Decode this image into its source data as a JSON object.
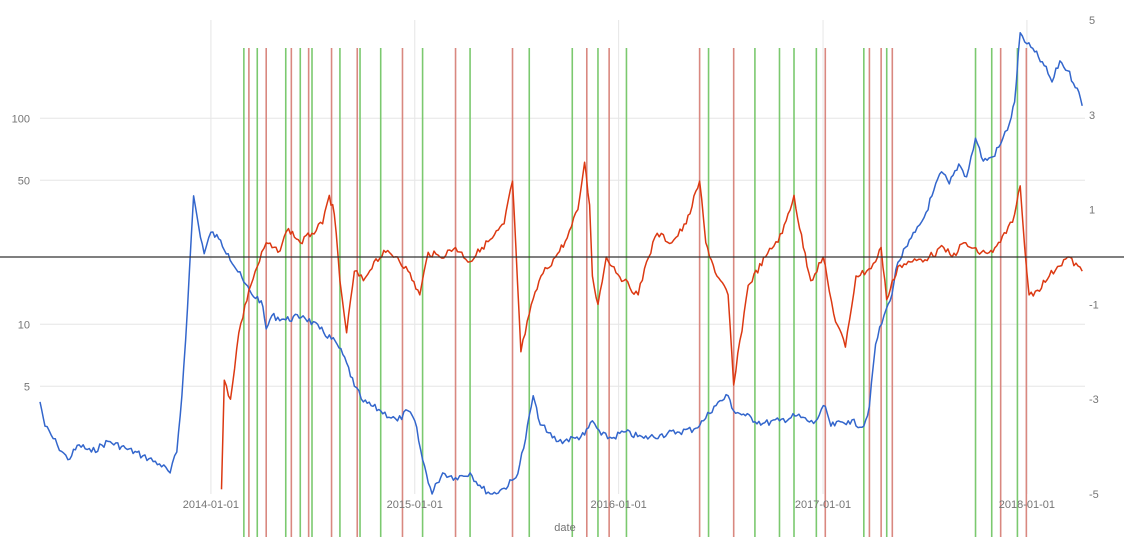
{
  "chart_data": {
    "type": "line",
    "title": "",
    "xlabel": "date",
    "ylabel": "",
    "x_ticks": [
      "2014-01-01",
      "2015-01-01",
      "2016-01-01",
      "2017-01-01",
      "2018-01-01"
    ],
    "x_range": [
      "2013-03-01",
      "2018-04-15"
    ],
    "y_left": {
      "scale": "log",
      "ticks": [
        5,
        10,
        50,
        100
      ],
      "range": [
        1.5,
        300
      ]
    },
    "y_right": {
      "scale": "linear",
      "ticks": [
        5,
        3,
        1,
        -1,
        -3,
        -5
      ],
      "range": [
        -5,
        5
      ]
    },
    "zero_line_right": 0,
    "grid": true,
    "legend": "none",
    "colors": {
      "series_left": "#3366cc",
      "series_right": "#dc3912",
      "buy_signal": "#7bc96f",
      "sell_signal": "#d98880",
      "zero_line": "#333333",
      "grid": "#e6e6e6"
    },
    "series": [
      {
        "axis": "left",
        "points": [
          [
            "2013-03-01",
            4.2
          ],
          [
            "2013-03-10",
            3.2
          ],
          [
            "2013-04-01",
            2.6
          ],
          [
            "2013-04-20",
            2.2
          ],
          [
            "2013-05-10",
            2.6
          ],
          [
            "2013-06-01",
            2.4
          ],
          [
            "2013-07-01",
            2.7
          ],
          [
            "2013-08-01",
            2.5
          ],
          [
            "2013-09-01",
            2.3
          ],
          [
            "2013-10-01",
            2.1
          ],
          [
            "2013-10-20",
            1.9
          ],
          [
            "2013-11-01",
            2.4
          ],
          [
            "2013-11-10",
            4.5
          ],
          [
            "2013-11-20",
            12
          ],
          [
            "2013-12-01",
            42
          ],
          [
            "2013-12-10",
            30
          ],
          [
            "2013-12-20",
            22
          ],
          [
            "2014-01-01",
            28
          ],
          [
            "2014-01-15",
            26
          ],
          [
            "2014-02-01",
            22
          ],
          [
            "2014-03-01",
            16
          ],
          [
            "2014-03-15",
            14
          ],
          [
            "2014-04-01",
            13
          ],
          [
            "2014-04-10",
            9.5
          ],
          [
            "2014-04-20",
            11
          ],
          [
            "2014-05-15",
            10.5
          ],
          [
            "2014-06-15",
            11
          ],
          [
            "2014-07-15",
            9.5
          ],
          [
            "2014-08-15",
            8
          ],
          [
            "2014-09-01",
            6.5
          ],
          [
            "2014-09-15",
            5
          ],
          [
            "2014-10-01",
            4.2
          ],
          [
            "2014-11-01",
            3.8
          ],
          [
            "2014-12-01",
            3.4
          ],
          [
            "2014-12-20",
            3.8
          ],
          [
            "2015-01-01",
            3.4
          ],
          [
            "2015-01-15",
            2.2
          ],
          [
            "2015-02-01",
            1.5
          ],
          [
            "2015-02-10",
            1.7
          ],
          [
            "2015-02-20",
            1.9
          ],
          [
            "2015-03-15",
            1.8
          ],
          [
            "2015-04-10",
            1.9
          ],
          [
            "2015-05-01",
            1.6
          ],
          [
            "2015-05-20",
            1.5
          ],
          [
            "2015-06-10",
            1.6
          ],
          [
            "2015-07-01",
            1.8
          ],
          [
            "2015-07-15",
            2.5
          ],
          [
            "2015-08-01",
            4.5
          ],
          [
            "2015-08-10",
            3.5
          ],
          [
            "2015-08-25",
            3.0
          ],
          [
            "2015-09-15",
            2.7
          ],
          [
            "2015-10-15",
            2.8
          ],
          [
            "2015-11-01",
            2.9
          ],
          [
            "2015-11-15",
            3.4
          ],
          [
            "2015-12-01",
            2.9
          ],
          [
            "2015-12-20",
            2.8
          ],
          [
            "2016-01-10",
            3.0
          ],
          [
            "2016-02-15",
            2.8
          ],
          [
            "2016-03-15",
            2.9
          ],
          [
            "2016-04-15",
            3.0
          ],
          [
            "2016-05-15",
            3.1
          ],
          [
            "2016-06-01",
            3.4
          ],
          [
            "2016-06-20",
            4.0
          ],
          [
            "2016-07-15",
            4.5
          ],
          [
            "2016-07-25",
            3.8
          ],
          [
            "2016-08-15",
            3.6
          ],
          [
            "2016-09-15",
            3.3
          ],
          [
            "2016-10-15",
            3.4
          ],
          [
            "2016-11-15",
            3.6
          ],
          [
            "2016-12-15",
            3.3
          ],
          [
            "2017-01-05",
            4.0
          ],
          [
            "2017-01-15",
            3.2
          ],
          [
            "2017-02-15",
            3.4
          ],
          [
            "2017-03-15",
            3.2
          ],
          [
            "2017-03-25",
            4.0
          ],
          [
            "2017-04-05",
            8
          ],
          [
            "2017-04-20",
            11
          ],
          [
            "2017-05-01",
            13
          ],
          [
            "2017-05-15",
            20
          ],
          [
            "2017-06-01",
            24
          ],
          [
            "2017-06-15",
            28
          ],
          [
            "2017-07-01",
            33
          ],
          [
            "2017-07-15",
            42
          ],
          [
            "2017-08-01",
            55
          ],
          [
            "2017-08-15",
            48
          ],
          [
            "2017-09-01",
            60
          ],
          [
            "2017-09-15",
            52
          ],
          [
            "2017-10-01",
            80
          ],
          [
            "2017-10-15",
            62
          ],
          [
            "2017-11-01",
            65
          ],
          [
            "2017-11-15",
            75
          ],
          [
            "2017-12-01",
            95
          ],
          [
            "2017-12-10",
            120
          ],
          [
            "2017-12-20",
            260
          ],
          [
            "2018-01-01",
            230
          ],
          [
            "2018-01-15",
            210
          ],
          [
            "2018-02-01",
            180
          ],
          [
            "2018-02-15",
            150
          ],
          [
            "2018-03-01",
            190
          ],
          [
            "2018-03-15",
            170
          ],
          [
            "2018-04-01",
            140
          ],
          [
            "2018-04-10",
            115
          ]
        ]
      },
      {
        "axis": "right",
        "points": [
          [
            "2014-01-20",
            -4.9
          ],
          [
            "2014-01-25",
            -2.6
          ],
          [
            "2014-02-05",
            -3.0
          ],
          [
            "2014-02-20",
            -1.6
          ],
          [
            "2014-03-10",
            -0.7
          ],
          [
            "2014-03-25",
            -0.2
          ],
          [
            "2014-04-10",
            0.3
          ],
          [
            "2014-05-01",
            0.1
          ],
          [
            "2014-05-20",
            0.6
          ],
          [
            "2014-06-10",
            0.3
          ],
          [
            "2014-07-01",
            0.5
          ],
          [
            "2014-07-20",
            0.7
          ],
          [
            "2014-08-01",
            1.3
          ],
          [
            "2014-08-10",
            0.9
          ],
          [
            "2014-08-20",
            -0.5
          ],
          [
            "2014-09-01",
            -1.6
          ],
          [
            "2014-09-15",
            -0.3
          ],
          [
            "2014-10-01",
            -0.5
          ],
          [
            "2014-10-20",
            -0.1
          ],
          [
            "2014-11-10",
            0.1
          ],
          [
            "2014-12-01",
            0.0
          ],
          [
            "2014-12-20",
            -0.3
          ],
          [
            "2015-01-10",
            -0.8
          ],
          [
            "2015-01-25",
            0.1
          ],
          [
            "2015-02-15",
            0.0
          ],
          [
            "2015-03-15",
            0.2
          ],
          [
            "2015-04-10",
            -0.1
          ],
          [
            "2015-05-01",
            0.2
          ],
          [
            "2015-05-20",
            0.4
          ],
          [
            "2015-06-10",
            0.7
          ],
          [
            "2015-06-25",
            1.6
          ],
          [
            "2015-07-01",
            0.2
          ],
          [
            "2015-07-10",
            -2.0
          ],
          [
            "2015-07-25",
            -1.2
          ],
          [
            "2015-08-15",
            -0.4
          ],
          [
            "2015-09-10",
            0.0
          ],
          [
            "2015-10-01",
            0.4
          ],
          [
            "2015-10-20",
            1.0
          ],
          [
            "2015-11-01",
            2.0
          ],
          [
            "2015-11-10",
            1.1
          ],
          [
            "2015-11-15",
            -0.4
          ],
          [
            "2015-11-25",
            -1.0
          ],
          [
            "2015-12-10",
            0.0
          ],
          [
            "2016-01-10",
            -0.5
          ],
          [
            "2016-02-05",
            -0.8
          ],
          [
            "2016-02-20",
            -0.1
          ],
          [
            "2016-03-10",
            0.5
          ],
          [
            "2016-04-05",
            0.3
          ],
          [
            "2016-05-01",
            0.7
          ],
          [
            "2016-05-25",
            1.6
          ],
          [
            "2016-06-05",
            0.3
          ],
          [
            "2016-06-25",
            -0.4
          ],
          [
            "2016-07-15",
            -0.8
          ],
          [
            "2016-07-25",
            -2.7
          ],
          [
            "2016-08-20",
            -0.6
          ],
          [
            "2016-09-20",
            0.0
          ],
          [
            "2016-10-20",
            0.5
          ],
          [
            "2016-11-10",
            1.3
          ],
          [
            "2016-11-20",
            0.6
          ],
          [
            "2016-12-10",
            -0.5
          ],
          [
            "2017-01-01",
            0.0
          ],
          [
            "2017-01-20",
            -1.2
          ],
          [
            "2017-02-10",
            -1.9
          ],
          [
            "2017-03-01",
            -0.4
          ],
          [
            "2017-03-20",
            -0.3
          ],
          [
            "2017-04-05",
            -0.1
          ],
          [
            "2017-04-15",
            0.2
          ],
          [
            "2017-04-25",
            -0.9
          ],
          [
            "2017-05-15",
            -0.2
          ],
          [
            "2017-06-10",
            -0.1
          ],
          [
            "2017-07-10",
            0.0
          ],
          [
            "2017-08-05",
            0.2
          ],
          [
            "2017-08-20",
            0.0
          ],
          [
            "2017-09-10",
            0.3
          ],
          [
            "2017-10-05",
            0.1
          ],
          [
            "2017-11-01",
            0.1
          ],
          [
            "2017-11-25",
            0.5
          ],
          [
            "2017-12-10",
            0.9
          ],
          [
            "2017-12-20",
            1.5
          ],
          [
            "2017-12-28",
            0.2
          ],
          [
            "2018-01-05",
            -0.8
          ],
          [
            "2018-01-20",
            -0.7
          ],
          [
            "2018-02-10",
            -0.4
          ],
          [
            "2018-02-25",
            -0.2
          ],
          [
            "2018-03-15",
            0.0
          ],
          [
            "2018-04-10",
            -0.3
          ]
        ]
      }
    ],
    "signals": {
      "buy": [
        "2014-03-01",
        "2014-03-25",
        "2014-05-15",
        "2014-06-10",
        "2014-07-01",
        "2014-08-20",
        "2014-09-25",
        "2014-11-01",
        "2015-01-15",
        "2015-04-10",
        "2015-07-25",
        "2015-10-10",
        "2015-11-25",
        "2016-01-15",
        "2016-06-10",
        "2016-09-01",
        "2016-10-15",
        "2016-11-10",
        "2016-12-20",
        "2017-03-15",
        "2017-04-25",
        "2017-10-01",
        "2017-10-30",
        "2017-12-15"
      ],
      "sell": [
        "2014-03-10",
        "2014-04-10",
        "2014-05-25",
        "2014-06-25",
        "2014-08-05",
        "2014-09-20",
        "2014-12-10",
        "2015-03-15",
        "2015-06-25",
        "2015-11-05",
        "2015-12-15",
        "2016-05-25",
        "2016-07-25",
        "2017-01-05",
        "2017-03-25",
        "2017-04-15",
        "2017-05-05",
        "2017-11-15",
        "2017-12-31"
      ]
    }
  }
}
